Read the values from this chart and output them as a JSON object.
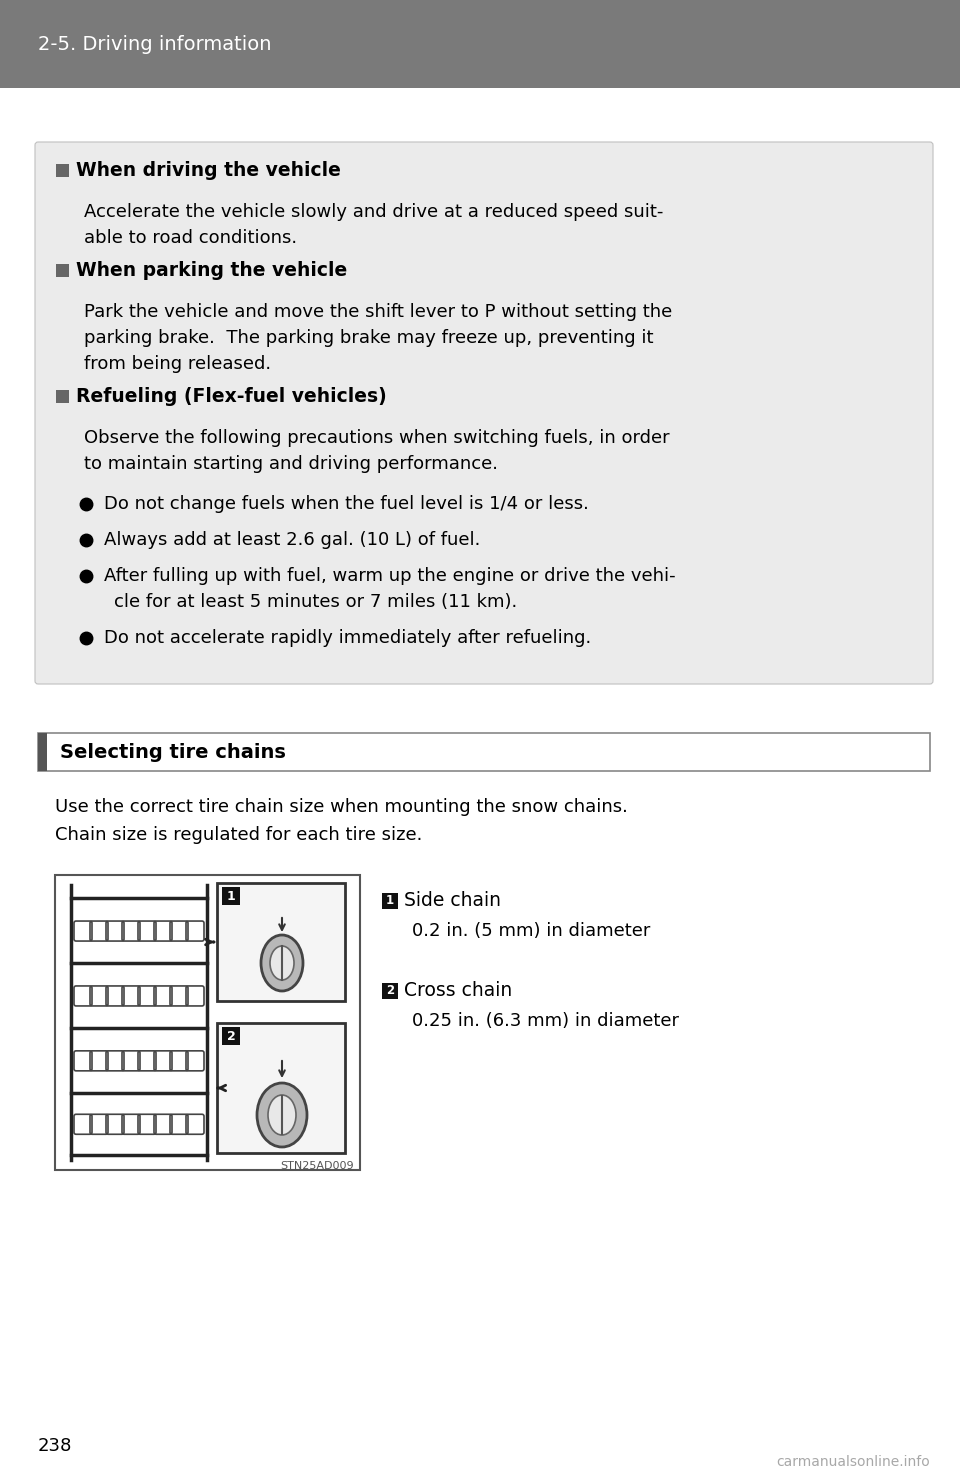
{
  "header_bg": "#7a7a7a",
  "header_text": "2-5. Driving information",
  "header_text_color": "#ffffff",
  "page_bg": "#ffffff",
  "info_box_bg": "#ebebeb",
  "section_title_bar_bg": "#ffffff",
  "section_title_bar_border": "#555555",
  "section_title_accent": "#555555",
  "section_title_text": "Selecting tire chains",
  "page_number": "238",
  "watermark": "carmanualsonline.info",
  "info_sections": [
    {
      "heading": "When driving the vehicle",
      "body_lines": [
        "Accelerate the vehicle slowly and drive at a reduced speed suit-",
        "able to road conditions."
      ]
    },
    {
      "heading": "When parking the vehicle",
      "body_lines": [
        "Park the vehicle and move the shift lever to P without setting the",
        "parking brake.  The parking brake may freeze up, preventing it",
        "from being released."
      ]
    },
    {
      "heading": "Refueling (Flex-fuel vehicles)",
      "body_lines": [
        "Observe the following precautions when switching fuels, in order",
        "to maintain starting and driving performance."
      ]
    }
  ],
  "bullets": [
    [
      "Do not change fuels when the fuel level is 1/4 or less."
    ],
    [
      "Always add at least 2.6 gal. (10 L) of fuel."
    ],
    [
      "After fulling up with fuel, warm up the engine or drive the vehi-",
      "cle for at least 5 minutes or 7 miles (11 km)."
    ],
    [
      "Do not accelerate rapidly immediately after refueling."
    ]
  ],
  "chain_intro": [
    "Use the correct tire chain size when mounting the snow chains.",
    "Chain size is regulated for each tire size."
  ],
  "chain_labels": [
    {
      "num": "1",
      "title": "Side chain",
      "detail": "0.2 in. (5 mm) in diameter"
    },
    {
      "num": "2",
      "title": "Cross chain",
      "detail": "0.25 in. (6.3 mm) in diameter"
    }
  ],
  "image_caption": "STN25AD009"
}
